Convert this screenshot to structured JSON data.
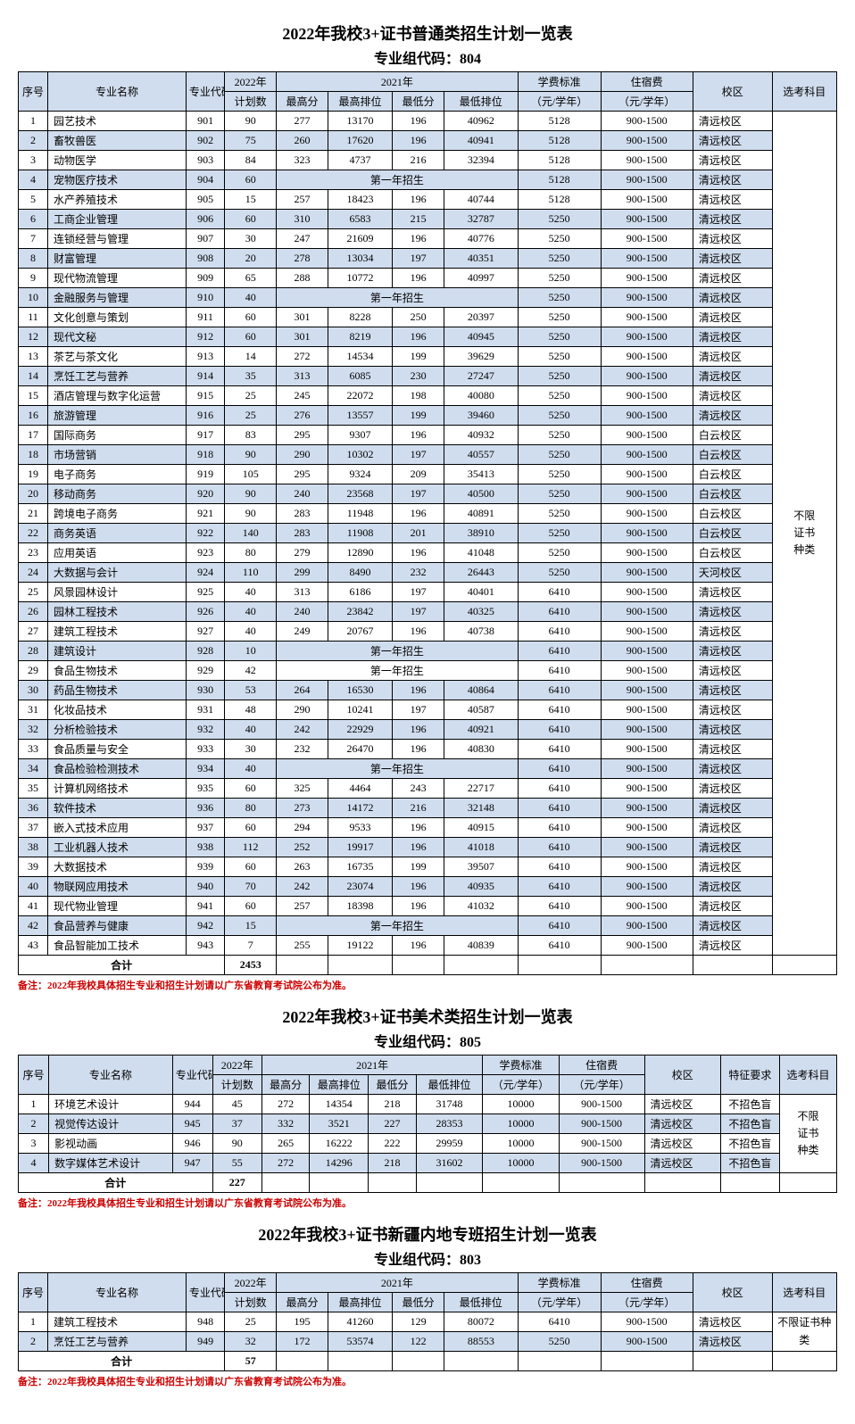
{
  "tables": [
    {
      "title": "2022年我校3+证书普通类招生计划一览表",
      "subtitle": "专业组代码：804",
      "note": "备注：2022年我校具体招生专业和招生计划请以广东省教育考试院公布为准。",
      "total_label": "合计",
      "total_value": "2453",
      "subject_text": "不限证书种类",
      "headers": {
        "seq": "序号",
        "name": "专业名称",
        "code": "专业代码",
        "y2022": "2022年",
        "plan": "计划数",
        "y2021": "2021年",
        "maxscore": "最高分",
        "maxrank": "最高排位",
        "minscore": "最低分",
        "minrank": "最低排位",
        "tuition1": "学费标准",
        "tuition2": "（元/学年）",
        "dorm1": "住宿费",
        "dorm2": "（元/学年）",
        "campus": "校区",
        "subject": "选考科目"
      },
      "rows": [
        {
          "seq": "1",
          "name": "园艺技术",
          "code": "901",
          "plan": "90",
          "max": "277",
          "maxr": "13170",
          "min": "196",
          "minr": "40962",
          "tuition": "5128",
          "dorm": "900-1500",
          "campus": "清远校区"
        },
        {
          "seq": "2",
          "name": "畜牧兽医",
          "code": "902",
          "plan": "75",
          "max": "260",
          "maxr": "17620",
          "min": "196",
          "minr": "40941",
          "tuition": "5128",
          "dorm": "900-1500",
          "campus": "清远校区",
          "alt": true
        },
        {
          "seq": "3",
          "name": "动物医学",
          "code": "903",
          "plan": "84",
          "max": "323",
          "maxr": "4737",
          "min": "216",
          "minr": "32394",
          "tuition": "5128",
          "dorm": "900-1500",
          "campus": "清远校区"
        },
        {
          "seq": "4",
          "name": "宠物医疗技术",
          "code": "904",
          "plan": "60",
          "first": "第一年招生",
          "tuition": "5128",
          "dorm": "900-1500",
          "campus": "清远校区",
          "alt": true
        },
        {
          "seq": "5",
          "name": "水产养殖技术",
          "code": "905",
          "plan": "15",
          "max": "257",
          "maxr": "18423",
          "min": "196",
          "minr": "40744",
          "tuition": "5128",
          "dorm": "900-1500",
          "campus": "清远校区"
        },
        {
          "seq": "6",
          "name": "工商企业管理",
          "code": "906",
          "plan": "60",
          "max": "310",
          "maxr": "6583",
          "min": "215",
          "minr": "32787",
          "tuition": "5250",
          "dorm": "900-1500",
          "campus": "清远校区",
          "alt": true
        },
        {
          "seq": "7",
          "name": "连锁经营与管理",
          "code": "907",
          "plan": "30",
          "max": "247",
          "maxr": "21609",
          "min": "196",
          "minr": "40776",
          "tuition": "5250",
          "dorm": "900-1500",
          "campus": "清远校区"
        },
        {
          "seq": "8",
          "name": "财富管理",
          "code": "908",
          "plan": "20",
          "max": "278",
          "maxr": "13034",
          "min": "197",
          "minr": "40351",
          "tuition": "5250",
          "dorm": "900-1500",
          "campus": "清远校区",
          "alt": true
        },
        {
          "seq": "9",
          "name": "现代物流管理",
          "code": "909",
          "plan": "65",
          "max": "288",
          "maxr": "10772",
          "min": "196",
          "minr": "40997",
          "tuition": "5250",
          "dorm": "900-1500",
          "campus": "清远校区"
        },
        {
          "seq": "10",
          "name": "金融服务与管理",
          "code": "910",
          "plan": "40",
          "first": "第一年招生",
          "tuition": "5250",
          "dorm": "900-1500",
          "campus": "清远校区",
          "alt": true
        },
        {
          "seq": "11",
          "name": "文化创意与策划",
          "code": "911",
          "plan": "60",
          "max": "301",
          "maxr": "8228",
          "min": "250",
          "minr": "20397",
          "tuition": "5250",
          "dorm": "900-1500",
          "campus": "清远校区"
        },
        {
          "seq": "12",
          "name": "现代文秘",
          "code": "912",
          "plan": "60",
          "max": "301",
          "maxr": "8219",
          "min": "196",
          "minr": "40945",
          "tuition": "5250",
          "dorm": "900-1500",
          "campus": "清远校区",
          "alt": true
        },
        {
          "seq": "13",
          "name": "茶艺与茶文化",
          "code": "913",
          "plan": "14",
          "max": "272",
          "maxr": "14534",
          "min": "199",
          "minr": "39629",
          "tuition": "5250",
          "dorm": "900-1500",
          "campus": "清远校区"
        },
        {
          "seq": "14",
          "name": "烹饪工艺与营养",
          "code": "914",
          "plan": "35",
          "max": "313",
          "maxr": "6085",
          "min": "230",
          "minr": "27247",
          "tuition": "5250",
          "dorm": "900-1500",
          "campus": "清远校区",
          "alt": true
        },
        {
          "seq": "15",
          "name": "酒店管理与数字化运营",
          "code": "915",
          "plan": "25",
          "max": "245",
          "maxr": "22072",
          "min": "198",
          "minr": "40080",
          "tuition": "5250",
          "dorm": "900-1500",
          "campus": "清远校区"
        },
        {
          "seq": "16",
          "name": "旅游管理",
          "code": "916",
          "plan": "25",
          "max": "276",
          "maxr": "13557",
          "min": "199",
          "minr": "39460",
          "tuition": "5250",
          "dorm": "900-1500",
          "campus": "清远校区",
          "alt": true
        },
        {
          "seq": "17",
          "name": "国际商务",
          "code": "917",
          "plan": "83",
          "max": "295",
          "maxr": "9307",
          "min": "196",
          "minr": "40932",
          "tuition": "5250",
          "dorm": "900-1500",
          "campus": "白云校区"
        },
        {
          "seq": "18",
          "name": "市场营销",
          "code": "918",
          "plan": "90",
          "max": "290",
          "maxr": "10302",
          "min": "197",
          "minr": "40557",
          "tuition": "5250",
          "dorm": "900-1500",
          "campus": "白云校区",
          "alt": true
        },
        {
          "seq": "19",
          "name": "电子商务",
          "code": "919",
          "plan": "105",
          "max": "295",
          "maxr": "9324",
          "min": "209",
          "minr": "35413",
          "tuition": "5250",
          "dorm": "900-1500",
          "campus": "白云校区"
        },
        {
          "seq": "20",
          "name": "移动商务",
          "code": "920",
          "plan": "90",
          "max": "240",
          "maxr": "23568",
          "min": "197",
          "minr": "40500",
          "tuition": "5250",
          "dorm": "900-1500",
          "campus": "白云校区",
          "alt": true
        },
        {
          "seq": "21",
          "name": "跨境电子商务",
          "code": "921",
          "plan": "90",
          "max": "283",
          "maxr": "11948",
          "min": "196",
          "minr": "40891",
          "tuition": "5250",
          "dorm": "900-1500",
          "campus": "白云校区"
        },
        {
          "seq": "22",
          "name": "商务英语",
          "code": "922",
          "plan": "140",
          "max": "283",
          "maxr": "11908",
          "min": "201",
          "minr": "38910",
          "tuition": "5250",
          "dorm": "900-1500",
          "campus": "白云校区",
          "alt": true
        },
        {
          "seq": "23",
          "name": "应用英语",
          "code": "923",
          "plan": "80",
          "max": "279",
          "maxr": "12890",
          "min": "196",
          "minr": "41048",
          "tuition": "5250",
          "dorm": "900-1500",
          "campus": "白云校区"
        },
        {
          "seq": "24",
          "name": "大数据与会计",
          "code": "924",
          "plan": "110",
          "max": "299",
          "maxr": "8490",
          "min": "232",
          "minr": "26443",
          "tuition": "5250",
          "dorm": "900-1500",
          "campus": "天河校区",
          "alt": true
        },
        {
          "seq": "25",
          "name": "风景园林设计",
          "code": "925",
          "plan": "40",
          "max": "313",
          "maxr": "6186",
          "min": "197",
          "minr": "40401",
          "tuition": "6410",
          "dorm": "900-1500",
          "campus": "清远校区"
        },
        {
          "seq": "26",
          "name": "园林工程技术",
          "code": "926",
          "plan": "40",
          "max": "240",
          "maxr": "23842",
          "min": "197",
          "minr": "40325",
          "tuition": "6410",
          "dorm": "900-1500",
          "campus": "清远校区",
          "alt": true
        },
        {
          "seq": "27",
          "name": "建筑工程技术",
          "code": "927",
          "plan": "40",
          "max": "249",
          "maxr": "20767",
          "min": "196",
          "minr": "40738",
          "tuition": "6410",
          "dorm": "900-1500",
          "campus": "清远校区"
        },
        {
          "seq": "28",
          "name": "建筑设计",
          "code": "928",
          "plan": "10",
          "first": "第一年招生",
          "tuition": "6410",
          "dorm": "900-1500",
          "campus": "清远校区",
          "alt": true
        },
        {
          "seq": "29",
          "name": "食品生物技术",
          "code": "929",
          "plan": "42",
          "first": "第一年招生",
          "tuition": "6410",
          "dorm": "900-1500",
          "campus": "清远校区"
        },
        {
          "seq": "30",
          "name": "药品生物技术",
          "code": "930",
          "plan": "53",
          "max": "264",
          "maxr": "16530",
          "min": "196",
          "minr": "40864",
          "tuition": "6410",
          "dorm": "900-1500",
          "campus": "清远校区",
          "alt": true
        },
        {
          "seq": "31",
          "name": "化妆品技术",
          "code": "931",
          "plan": "48",
          "max": "290",
          "maxr": "10241",
          "min": "197",
          "minr": "40587",
          "tuition": "6410",
          "dorm": "900-1500",
          "campus": "清远校区"
        },
        {
          "seq": "32",
          "name": "分析检验技术",
          "code": "932",
          "plan": "40",
          "max": "242",
          "maxr": "22929",
          "min": "196",
          "minr": "40921",
          "tuition": "6410",
          "dorm": "900-1500",
          "campus": "清远校区",
          "alt": true
        },
        {
          "seq": "33",
          "name": "食品质量与安全",
          "code": "933",
          "plan": "30",
          "max": "232",
          "maxr": "26470",
          "min": "196",
          "minr": "40830",
          "tuition": "6410",
          "dorm": "900-1500",
          "campus": "清远校区"
        },
        {
          "seq": "34",
          "name": "食品检验检测技术",
          "code": "934",
          "plan": "40",
          "first": "第一年招生",
          "tuition": "6410",
          "dorm": "900-1500",
          "campus": "清远校区",
          "alt": true
        },
        {
          "seq": "35",
          "name": "计算机网络技术",
          "code": "935",
          "plan": "60",
          "max": "325",
          "maxr": "4464",
          "min": "243",
          "minr": "22717",
          "tuition": "6410",
          "dorm": "900-1500",
          "campus": "清远校区"
        },
        {
          "seq": "36",
          "name": "软件技术",
          "code": "936",
          "plan": "80",
          "max": "273",
          "maxr": "14172",
          "min": "216",
          "minr": "32148",
          "tuition": "6410",
          "dorm": "900-1500",
          "campus": "清远校区",
          "alt": true
        },
        {
          "seq": "37",
          "name": "嵌入式技术应用",
          "code": "937",
          "plan": "60",
          "max": "294",
          "maxr": "9533",
          "min": "196",
          "minr": "40915",
          "tuition": "6410",
          "dorm": "900-1500",
          "campus": "清远校区"
        },
        {
          "seq": "38",
          "name": "工业机器人技术",
          "code": "938",
          "plan": "112",
          "max": "252",
          "maxr": "19917",
          "min": "196",
          "minr": "41018",
          "tuition": "6410",
          "dorm": "900-1500",
          "campus": "清远校区",
          "alt": true
        },
        {
          "seq": "39",
          "name": "大数据技术",
          "code": "939",
          "plan": "60",
          "max": "263",
          "maxr": "16735",
          "min": "199",
          "minr": "39507",
          "tuition": "6410",
          "dorm": "900-1500",
          "campus": "清远校区"
        },
        {
          "seq": "40",
          "name": "物联网应用技术",
          "code": "940",
          "plan": "70",
          "max": "242",
          "maxr": "23074",
          "min": "196",
          "minr": "40935",
          "tuition": "6410",
          "dorm": "900-1500",
          "campus": "清远校区",
          "alt": true
        },
        {
          "seq": "41",
          "name": "现代物业管理",
          "code": "941",
          "plan": "60",
          "max": "257",
          "maxr": "18398",
          "min": "196",
          "minr": "41032",
          "tuition": "6410",
          "dorm": "900-1500",
          "campus": "清远校区"
        },
        {
          "seq": "42",
          "name": "食品营养与健康",
          "code": "942",
          "plan": "15",
          "first": "第一年招生",
          "tuition": "6410",
          "dorm": "900-1500",
          "campus": "清远校区",
          "alt": true
        },
        {
          "seq": "43",
          "name": "食品智能加工技术",
          "code": "943",
          "plan": "7",
          "max": "255",
          "maxr": "19122",
          "min": "196",
          "minr": "40839",
          "tuition": "6410",
          "dorm": "900-1500",
          "campus": "清远校区"
        }
      ]
    },
    {
      "title": "2022年我校3+证书美术类招生计划一览表",
      "subtitle": "专业组代码：805",
      "note": "备注：2022年我校具体招生专业和招生计划请以广东省教育考试院公布为准。",
      "total_label": "合计",
      "total_value": "227",
      "subject_text": "不限证书种类",
      "headers": {
        "seq": "序号",
        "name": "专业名称",
        "code": "专业代码",
        "y2022": "2022年",
        "plan": "计划数",
        "y2021": "2021年",
        "maxscore": "最高分",
        "maxrank": "最高排位",
        "minscore": "最低分",
        "minrank": "最低排位",
        "tuition1": "学费标准",
        "tuition2": "（元/学年）",
        "dorm1": "住宿费",
        "dorm2": "（元/学年）",
        "campus": "校区",
        "spec": "特征要求",
        "subject": "选考科目"
      },
      "rows": [
        {
          "seq": "1",
          "name": "环境艺术设计",
          "code": "944",
          "plan": "45",
          "max": "272",
          "maxr": "14354",
          "min": "218",
          "minr": "31748",
          "tuition": "10000",
          "dorm": "900-1500",
          "campus": "清远校区",
          "spec": "不招色盲"
        },
        {
          "seq": "2",
          "name": "视觉传达设计",
          "code": "945",
          "plan": "37",
          "max": "332",
          "maxr": "3521",
          "min": "227",
          "minr": "28353",
          "tuition": "10000",
          "dorm": "900-1500",
          "campus": "清远校区",
          "spec": "不招色盲",
          "alt": true
        },
        {
          "seq": "3",
          "name": "影视动画",
          "code": "946",
          "plan": "90",
          "max": "265",
          "maxr": "16222",
          "min": "222",
          "minr": "29959",
          "tuition": "10000",
          "dorm": "900-1500",
          "campus": "清远校区",
          "spec": "不招色盲"
        },
        {
          "seq": "4",
          "name": "数字媒体艺术设计",
          "code": "947",
          "plan": "55",
          "max": "272",
          "maxr": "14296",
          "min": "218",
          "minr": "31602",
          "tuition": "10000",
          "dorm": "900-1500",
          "campus": "清远校区",
          "spec": "不招色盲",
          "alt": true
        }
      ]
    },
    {
      "title": "2022年我校3+证书新疆内地专班招生计划一览表",
      "subtitle": "专业组代码：803",
      "note": "备注：2022年我校具体招生专业和招生计划请以广东省教育考试院公布为准。",
      "total_label": "合计",
      "total_value": "57",
      "subject_text": "不限证书种类",
      "headers": {
        "seq": "序号",
        "name": "专业名称",
        "code": "专业代码",
        "y2022": "2022年",
        "plan": "计划数",
        "y2021": "2021年",
        "maxscore": "最高分",
        "maxrank": "最高排位",
        "minscore": "最低分",
        "minrank": "最低排位",
        "tuition1": "学费标准",
        "tuition2": "（元/学年）",
        "dorm1": "住宿费",
        "dorm2": "（元/学年）",
        "campus": "校区",
        "subject": "选考科目"
      },
      "rows": [
        {
          "seq": "1",
          "name": "建筑工程技术",
          "code": "948",
          "plan": "25",
          "max": "195",
          "maxr": "41260",
          "min": "129",
          "minr": "80072",
          "tuition": "6410",
          "dorm": "900-1500",
          "campus": "清远校区"
        },
        {
          "seq": "2",
          "name": "烹饪工艺与营养",
          "code": "949",
          "plan": "32",
          "max": "172",
          "maxr": "53574",
          "min": "122",
          "minr": "88553",
          "tuition": "5250",
          "dorm": "900-1500",
          "campus": "清远校区",
          "alt": true
        }
      ]
    }
  ]
}
